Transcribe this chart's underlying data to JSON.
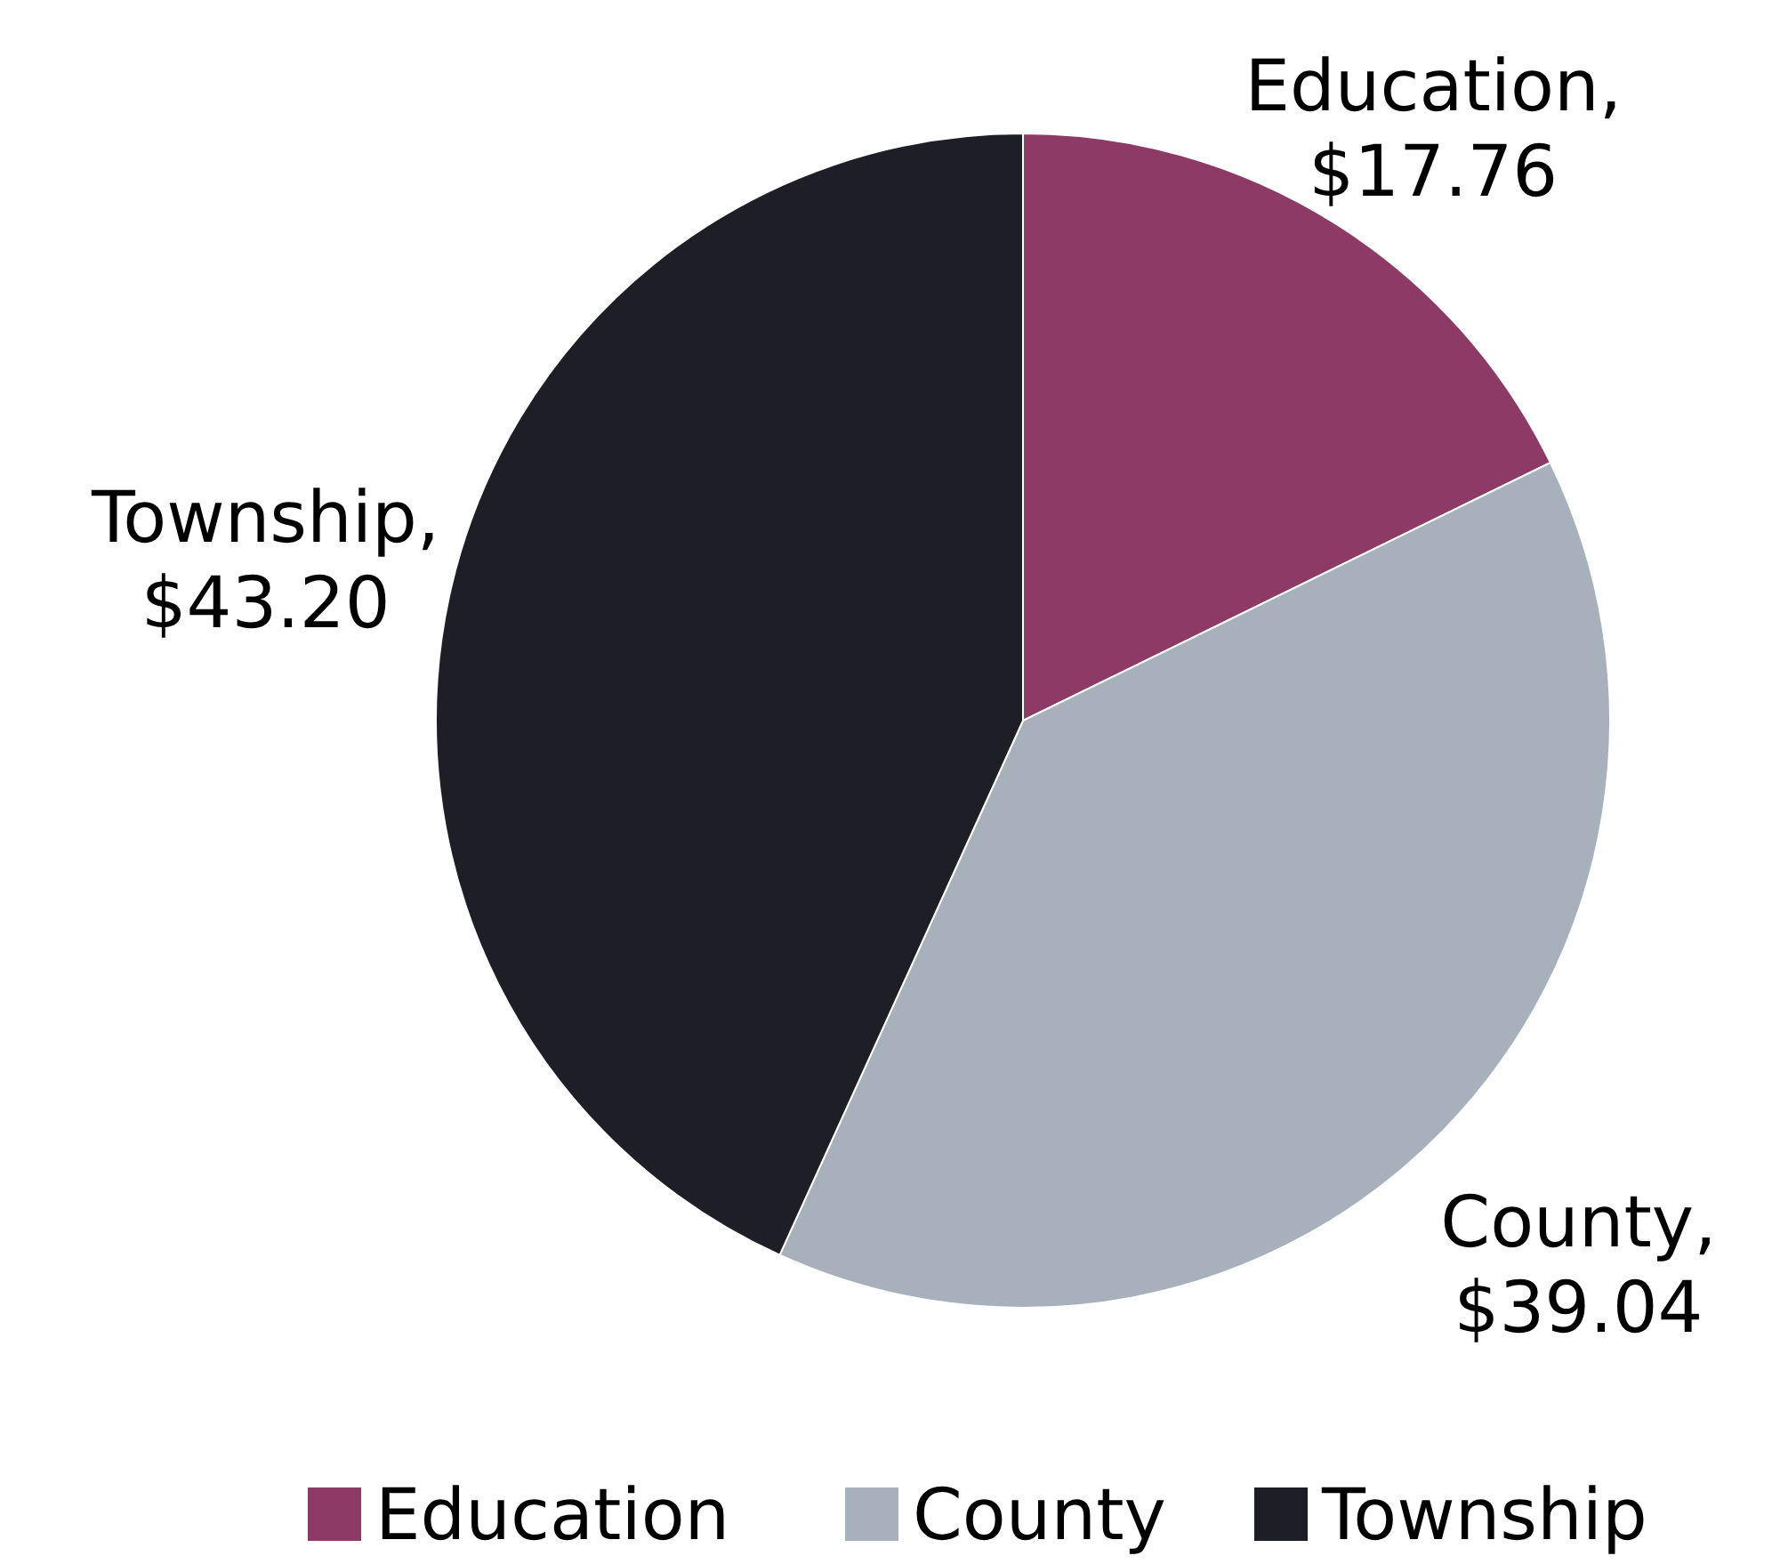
{
  "chart_data": {
    "type": "pie",
    "categories": [
      "Education",
      "County",
      "Township"
    ],
    "values": [
      17.76,
      39.04,
      43.2
    ],
    "colors": [
      "#8e3a66",
      "#a8b0bc",
      "#1e1e26"
    ],
    "value_labels": [
      "Education, $17.76",
      "County, $39.04",
      "Township, $43.20"
    ],
    "legend": "bottom"
  }
}
